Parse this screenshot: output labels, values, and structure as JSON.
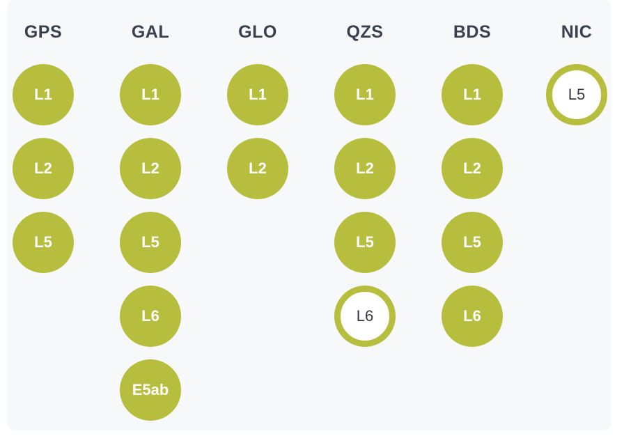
{
  "accent_color": "#b7bd3c",
  "columns": [
    {
      "title": "GPS",
      "signals": [
        {
          "label": "L1",
          "state": "active"
        },
        {
          "label": "L2",
          "state": "active"
        },
        {
          "label": "L5",
          "state": "active"
        }
      ]
    },
    {
      "title": "GAL",
      "signals": [
        {
          "label": "L1",
          "state": "active"
        },
        {
          "label": "L2",
          "state": "active"
        },
        {
          "label": "L5",
          "state": "active"
        },
        {
          "label": "L6",
          "state": "active"
        },
        {
          "label": "E5ab",
          "state": "active"
        }
      ]
    },
    {
      "title": "GLO",
      "signals": [
        {
          "label": "L1",
          "state": "active"
        },
        {
          "label": "L2",
          "state": "active"
        }
      ]
    },
    {
      "title": "QZS",
      "signals": [
        {
          "label": "L1",
          "state": "active"
        },
        {
          "label": "L2",
          "state": "active"
        },
        {
          "label": "L5",
          "state": "active"
        },
        {
          "label": "L6",
          "state": "inactive"
        }
      ]
    },
    {
      "title": "BDS",
      "signals": [
        {
          "label": "L1",
          "state": "active"
        },
        {
          "label": "L2",
          "state": "active"
        },
        {
          "label": "L5",
          "state": "active"
        },
        {
          "label": "L6",
          "state": "active"
        }
      ]
    },
    {
      "title": "NIC",
      "signals": [
        {
          "label": "L5",
          "state": "inactive"
        }
      ]
    }
  ]
}
